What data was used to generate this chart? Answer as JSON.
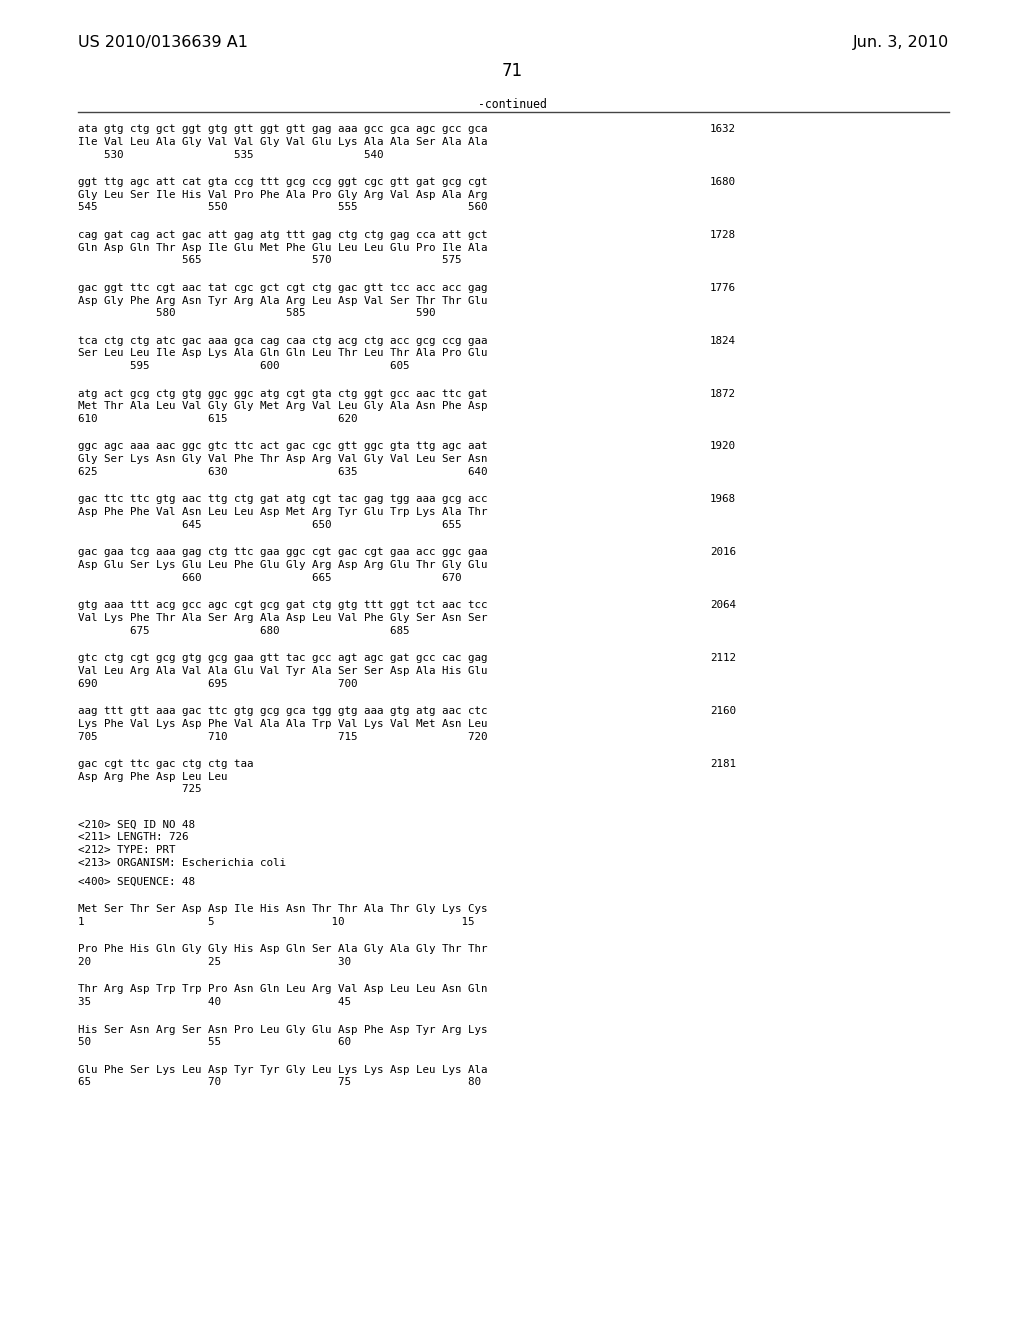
{
  "header_left": "US 2010/0136639 A1",
  "header_right": "Jun. 3, 2010",
  "page_number": "71",
  "continued_label": "-continued",
  "background_color": "#ffffff",
  "text_color": "#000000",
  "seq_blocks": [
    {
      "dna": "ata gtg ctg gct ggt gtg gtt ggt gtt gag aaa gcc gca agc gcc gca",
      "aa": "Ile Val Leu Ala Gly Val Val Gly Val Glu Lys Ala Ala Ser Ala Ala",
      "nums": "    530                 535                 540",
      "num_right": "1632"
    },
    {
      "dna": "ggt ttg agc att cat gta ccg ttt gcg ccg ggt cgc gtt gat gcg cgt",
      "aa": "Gly Leu Ser Ile His Val Pro Phe Ala Pro Gly Arg Val Asp Ala Arg",
      "nums": "545                 550                 555                 560",
      "num_right": "1680"
    },
    {
      "dna": "cag gat cag act gac att gag atg ttt gag ctg ctg gag cca att gct",
      "aa": "Gln Asp Gln Thr Asp Ile Glu Met Phe Glu Leu Leu Glu Pro Ile Ala",
      "nums": "                565                 570                 575",
      "num_right": "1728"
    },
    {
      "dna": "gac ggt ttc cgt aac tat cgc gct cgt ctg gac gtt tcc acc acc gag",
      "aa": "Asp Gly Phe Arg Asn Tyr Arg Ala Arg Leu Asp Val Ser Thr Thr Glu",
      "nums": "            580                 585                 590",
      "num_right": "1776"
    },
    {
      "dna": "tca ctg ctg atc gac aaa gca cag caa ctg acg ctg acc gcg ccg gaa",
      "aa": "Ser Leu Leu Ile Asp Lys Ala Gln Gln Leu Thr Leu Thr Ala Pro Glu",
      "nums": "        595                 600                 605",
      "num_right": "1824"
    },
    {
      "dna": "atg act gcg ctg gtg ggc ggc atg cgt gta ctg ggt gcc aac ttc gat",
      "aa": "Met Thr Ala Leu Val Gly Gly Met Arg Val Leu Gly Ala Asn Phe Asp",
      "nums": "610                 615                 620",
      "num_right": "1872"
    },
    {
      "dna": "ggc agc aaa aac ggc gtc ttc act gac cgc gtt ggc gta ttg agc aat",
      "aa": "Gly Ser Lys Asn Gly Val Phe Thr Asp Arg Val Gly Val Leu Ser Asn",
      "nums": "625                 630                 635                 640",
      "num_right": "1920"
    },
    {
      "dna": "gac ttc ttc gtg aac ttg ctg gat atg cgt tac gag tgg aaa gcg acc",
      "aa": "Asp Phe Phe Val Asn Leu Leu Asp Met Arg Tyr Glu Trp Lys Ala Thr",
      "nums": "                645                 650                 655",
      "num_right": "1968"
    },
    {
      "dna": "gac gaa tcg aaa gag ctg ttc gaa ggc cgt gac cgt gaa acc ggc gaa",
      "aa": "Asp Glu Ser Lys Glu Leu Phe Glu Gly Arg Asp Arg Glu Thr Gly Glu",
      "nums": "                660                 665                 670",
      "num_right": "2016"
    },
    {
      "dna": "gtg aaa ttt acg gcc agc cgt gcg gat ctg gtg ttt ggt tct aac tcc",
      "aa": "Val Lys Phe Thr Ala Ser Arg Ala Asp Leu Val Phe Gly Ser Asn Ser",
      "nums": "        675                 680                 685",
      "num_right": "2064"
    },
    {
      "dna": "gtc ctg cgt gcg gtg gcg gaa gtt tac gcc agt agc gat gcc cac gag",
      "aa": "Val Leu Arg Ala Val Ala Glu Val Tyr Ala Ser Ser Asp Ala His Glu",
      "nums": "690                 695                 700",
      "num_right": "2112"
    },
    {
      "dna": "aag ttt gtt aaa gac ttc gtg gcg gca tgg gtg aaa gtg atg aac ctc",
      "aa": "Lys Phe Val Lys Asp Phe Val Ala Ala Trp Val Lys Val Met Asn Leu",
      "nums": "705                 710                 715                 720",
      "num_right": "2160"
    },
    {
      "dna": "gac cgt ttc gac ctg ctg taa",
      "aa": "Asp Arg Phe Asp Leu Leu",
      "nums": "                725",
      "num_right": "2181"
    }
  ],
  "metadata_lines": [
    "<210> SEQ ID NO 48",
    "<211> LENGTH: 726",
    "<212> TYPE: PRT",
    "<213> ORGANISM: Escherichia coli"
  ],
  "seq_header": "<400> SEQUENCE: 48",
  "aa_blocks": [
    {
      "aa": "Met Ser Thr Ser Asp Asp Ile His Asn Thr Thr Ala Thr Gly Lys Cys",
      "nums": "1                   5                  10                  15"
    },
    {
      "aa": "Pro Phe His Gln Gly Gly His Asp Gln Ser Ala Gly Ala Gly Thr Thr",
      "nums": "20                  25                  30"
    },
    {
      "aa": "Thr Arg Asp Trp Trp Pro Asn Gln Leu Arg Val Asp Leu Leu Asn Gln",
      "nums": "35                  40                  45"
    },
    {
      "aa": "His Ser Asn Arg Ser Asn Pro Leu Gly Glu Asp Phe Asp Tyr Arg Lys",
      "nums": "50                  55                  60"
    },
    {
      "aa": "Glu Phe Ser Lys Leu Asp Tyr Tyr Gly Leu Lys Lys Asp Leu Lys Ala",
      "nums": "65                  70                  75                  80"
    }
  ]
}
